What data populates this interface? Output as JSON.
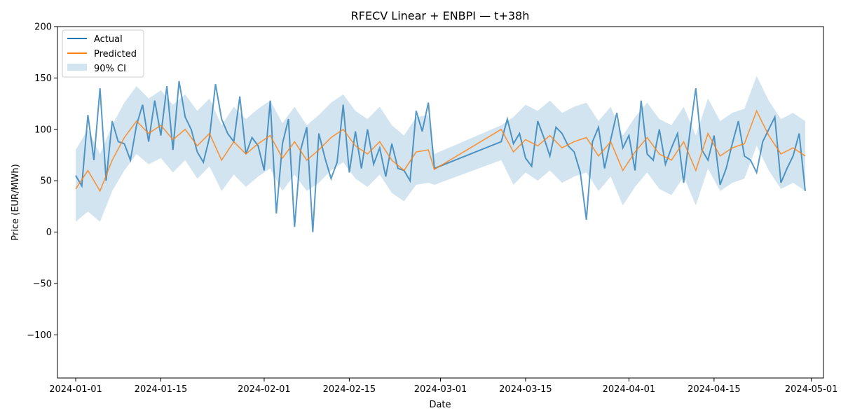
{
  "chart_data": {
    "type": "line",
    "title": "RFECV Linear + ENBPI — t+38h",
    "xlabel": "Date",
    "ylabel": "Price (EUR/MWh)",
    "xlim": [
      "2023-12-29",
      "2024-05-03"
    ],
    "ylim": [
      -142,
      200
    ],
    "grid": false,
    "legend_position": "top-left",
    "x_ticks": [
      "2024-01-01",
      "2024-01-15",
      "2024-02-01",
      "2024-02-15",
      "2024-03-01",
      "2024-03-15",
      "2024-04-01",
      "2024-04-15",
      "2024-05-01"
    ],
    "y_ticks": [
      -100,
      -50,
      0,
      50,
      100,
      150,
      200
    ],
    "y_tick_labels": [
      "−100",
      "−50",
      "0",
      "50",
      "100",
      "150",
      "200"
    ],
    "colors": {
      "actual": "#1f77b4",
      "predicted": "#ff7f0e",
      "ci": "#1f77b4"
    },
    "series": [
      {
        "name": "Actual",
        "x": [
          "2024-01-01",
          "2024-01-02",
          "2024-01-03",
          "2024-01-04",
          "2024-01-05",
          "2024-01-06",
          "2024-01-07",
          "2024-01-08",
          "2024-01-09",
          "2024-01-10",
          "2024-01-11",
          "2024-01-12",
          "2024-01-13",
          "2024-01-14",
          "2024-01-15",
          "2024-01-16",
          "2024-01-17",
          "2024-01-18",
          "2024-01-19",
          "2024-01-20",
          "2024-01-21",
          "2024-01-22",
          "2024-01-23",
          "2024-01-24",
          "2024-01-25",
          "2024-01-26",
          "2024-01-27",
          "2024-01-28",
          "2024-01-29",
          "2024-01-30",
          "2024-01-31",
          "2024-02-01",
          "2024-02-02",
          "2024-02-03",
          "2024-02-04",
          "2024-02-05",
          "2024-02-06",
          "2024-02-07",
          "2024-02-08",
          "2024-02-09",
          "2024-02-10",
          "2024-02-11",
          "2024-02-12",
          "2024-02-13",
          "2024-02-14",
          "2024-02-15",
          "2024-02-16",
          "2024-02-17",
          "2024-02-18",
          "2024-02-19",
          "2024-02-20",
          "2024-02-21",
          "2024-02-22",
          "2024-02-23",
          "2024-02-24",
          "2024-02-25",
          "2024-02-26",
          "2024-02-27",
          "2024-02-28",
          "2024-02-29",
          "2024-03-11",
          "2024-03-12",
          "2024-03-13",
          "2024-03-14",
          "2024-03-15",
          "2024-03-16",
          "2024-03-17",
          "2024-03-18",
          "2024-03-19",
          "2024-03-20",
          "2024-03-21",
          "2024-03-22",
          "2024-03-23",
          "2024-03-24",
          "2024-03-25",
          "2024-03-26",
          "2024-03-27",
          "2024-03-28",
          "2024-03-29",
          "2024-03-30",
          "2024-03-31",
          "2024-04-01",
          "2024-04-02",
          "2024-04-03",
          "2024-04-04",
          "2024-04-05",
          "2024-04-06",
          "2024-04-07",
          "2024-04-08",
          "2024-04-09",
          "2024-04-10",
          "2024-04-11",
          "2024-04-12",
          "2024-04-13",
          "2024-04-14",
          "2024-04-15",
          "2024-04-16",
          "2024-04-17",
          "2024-04-18",
          "2024-04-19",
          "2024-04-20",
          "2024-04-21",
          "2024-04-22",
          "2024-04-23",
          "2024-04-24",
          "2024-04-25",
          "2024-04-26",
          "2024-04-27",
          "2024-04-28",
          "2024-04-29",
          "2024-04-30"
        ],
        "values": [
          55,
          45,
          114,
          70,
          140,
          50,
          108,
          88,
          86,
          70,
          104,
          124,
          88,
          128,
          94,
          142,
          80,
          147,
          112,
          100,
          78,
          68,
          92,
          144,
          110,
          96,
          88,
          132,
          76,
          92,
          84,
          60,
          128,
          18,
          86,
          110,
          5,
          80,
          102,
          0,
          96,
          72,
          52,
          68,
          124,
          58,
          98,
          62,
          100,
          66,
          82,
          54,
          86,
          62,
          60,
          50,
          118,
          98,
          126,
          62,
          88,
          110,
          86,
          96,
          72,
          64,
          108,
          92,
          74,
          102,
          96,
          84,
          78,
          58,
          12,
          88,
          102,
          62,
          90,
          116,
          82,
          94,
          60,
          128,
          76,
          70,
          100,
          66,
          82,
          96,
          48,
          96,
          140,
          80,
          70,
          94,
          46,
          62,
          86,
          108,
          74,
          70,
          58,
          88,
          100,
          112,
          48,
          62,
          74,
          96,
          40
        ]
      }
    ],
    "note_series_sampling": "values sampled approximately daily from the chart",
    "predicted_values_by_date": {
      "x": [
        "2024-01-01",
        "2024-01-03",
        "2024-01-05",
        "2024-01-07",
        "2024-01-09",
        "2024-01-11",
        "2024-01-13",
        "2024-01-15",
        "2024-01-17",
        "2024-01-19",
        "2024-01-21",
        "2024-01-23",
        "2024-01-25",
        "2024-01-27",
        "2024-01-29",
        "2024-01-31",
        "2024-02-02",
        "2024-02-04",
        "2024-02-06",
        "2024-02-08",
        "2024-02-10",
        "2024-02-12",
        "2024-02-14",
        "2024-02-16",
        "2024-02-18",
        "2024-02-20",
        "2024-02-22",
        "2024-02-24",
        "2024-02-26",
        "2024-02-28",
        "2024-02-29",
        "2024-03-11",
        "2024-03-13",
        "2024-03-15",
        "2024-03-17",
        "2024-03-19",
        "2024-03-21",
        "2024-03-23",
        "2024-03-25",
        "2024-03-27",
        "2024-03-29",
        "2024-03-31",
        "2024-04-02",
        "2024-04-04",
        "2024-04-06",
        "2024-04-08",
        "2024-04-10",
        "2024-04-12",
        "2024-04-14",
        "2024-04-16",
        "2024-04-18",
        "2024-04-20",
        "2024-04-22",
        "2024-04-24",
        "2024-04-26",
        "2024-04-28",
        "2024-04-30"
      ],
      "values": [
        42,
        60,
        40,
        70,
        92,
        108,
        96,
        104,
        90,
        100,
        84,
        96,
        70,
        88,
        76,
        86,
        94,
        72,
        88,
        70,
        80,
        92,
        100,
        84,
        76,
        88,
        70,
        60,
        78,
        80,
        61,
        100,
        78,
        90,
        84,
        94,
        82,
        88,
        92,
        74,
        88,
        60,
        78,
        92,
        76,
        70,
        88,
        60,
        96,
        74,
        82,
        86,
        118,
        94,
        76,
        82,
        74
      ]
    },
    "ci_by_date": {
      "x": [
        "2024-01-01",
        "2024-01-03",
        "2024-01-05",
        "2024-01-07",
        "2024-01-09",
        "2024-01-11",
        "2024-01-13",
        "2024-01-15",
        "2024-01-17",
        "2024-01-19",
        "2024-01-21",
        "2024-01-23",
        "2024-01-25",
        "2024-01-27",
        "2024-01-29",
        "2024-01-31",
        "2024-02-02",
        "2024-02-04",
        "2024-02-06",
        "2024-02-08",
        "2024-02-10",
        "2024-02-12",
        "2024-02-14",
        "2024-02-16",
        "2024-02-18",
        "2024-02-20",
        "2024-02-22",
        "2024-02-24",
        "2024-02-26",
        "2024-02-28",
        "2024-02-29",
        "2024-03-11",
        "2024-03-13",
        "2024-03-15",
        "2024-03-17",
        "2024-03-19",
        "2024-03-21",
        "2024-03-23",
        "2024-03-25",
        "2024-03-27",
        "2024-03-29",
        "2024-03-31",
        "2024-04-02",
        "2024-04-04",
        "2024-04-06",
        "2024-04-08",
        "2024-04-10",
        "2024-04-12",
        "2024-04-14",
        "2024-04-16",
        "2024-04-18",
        "2024-04-20",
        "2024-04-22",
        "2024-04-24",
        "2024-04-26",
        "2024-04-28",
        "2024-04-30"
      ],
      "lower": [
        10,
        20,
        10,
        40,
        60,
        76,
        66,
        72,
        58,
        70,
        52,
        64,
        40,
        56,
        44,
        54,
        62,
        40,
        56,
        40,
        48,
        60,
        68,
        52,
        44,
        56,
        38,
        30,
        46,
        48,
        46,
        70,
        46,
        58,
        50,
        60,
        48,
        54,
        58,
        40,
        54,
        26,
        44,
        58,
        42,
        36,
        54,
        26,
        62,
        40,
        48,
        52,
        84,
        60,
        42,
        48,
        40
      ],
      "upper": [
        80,
        100,
        76,
        104,
        126,
        142,
        130,
        138,
        124,
        134,
        118,
        130,
        104,
        122,
        110,
        120,
        128,
        106,
        122,
        104,
        114,
        126,
        134,
        118,
        110,
        122,
        104,
        94,
        112,
        114,
        76,
        104,
        112,
        124,
        118,
        128,
        116,
        122,
        126,
        108,
        122,
        94,
        112,
        126,
        110,
        104,
        122,
        94,
        130,
        108,
        116,
        120,
        152,
        128,
        110,
        116,
        108
      ]
    },
    "series_meta": [
      {
        "name": "Actual",
        "color": "#1f77b4"
      },
      {
        "name": "Predicted",
        "color": "#ff7f0e"
      },
      {
        "name": "90% CI",
        "color": "#1f77b4"
      }
    ]
  }
}
